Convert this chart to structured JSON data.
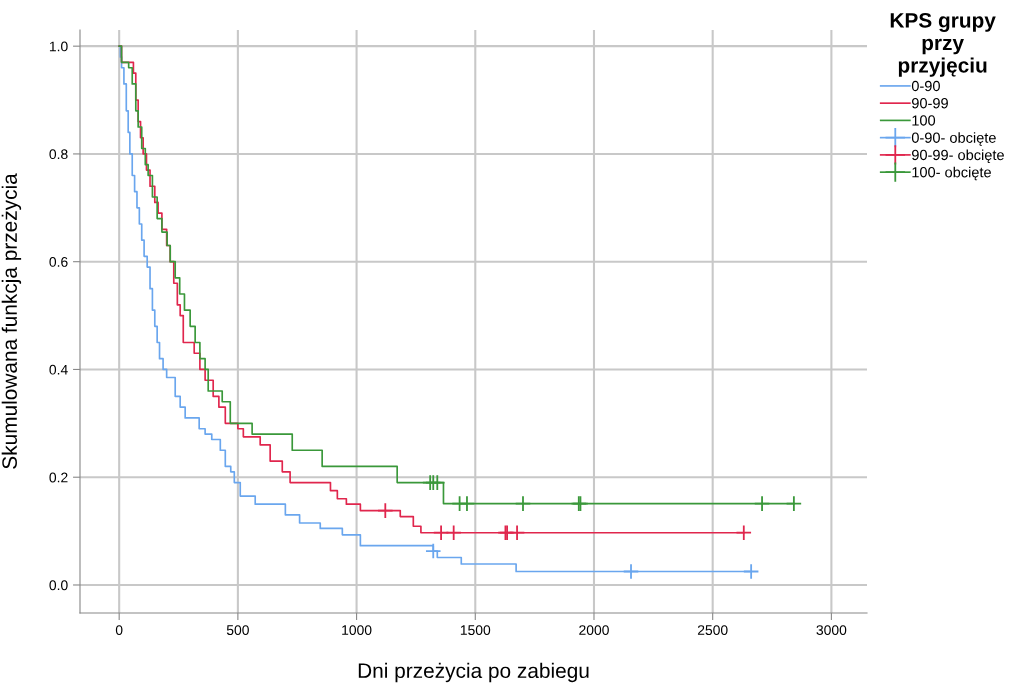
{
  "chart_data": {
    "type": "step",
    "xlabel": "Dni przeżycia po zabiegu",
    "ylabel": "Skumulowana funkcja przeżycia",
    "legend_title": "KPS grupy\nprzy\nprzyjęciu",
    "xlim": [
      -165,
      3150
    ],
    "ylim": [
      -0.052,
      1.03
    ],
    "xticks": [
      0,
      500,
      1000,
      1500,
      2000,
      2500,
      3000
    ],
    "yticks": [
      {
        "value": 0,
        "label": "0.0"
      },
      {
        "value": 0.2,
        "label": "0.2"
      },
      {
        "value": 0.4,
        "label": "0.4"
      },
      {
        "value": 0.6,
        "label": "0.6"
      },
      {
        "value": 0.8,
        "label": "0.8"
      },
      {
        "value": 1,
        "label": "1.0"
      }
    ],
    "grid": true,
    "legend": "right",
    "series": [
      {
        "name": "0-90",
        "color": "#6aa6ee",
        "x": [
          0,
          5,
          10,
          20,
          30,
          38,
          45,
          55,
          65,
          75,
          85,
          95,
          105,
          118,
          130,
          140,
          150,
          160,
          170,
          185,
          200,
          236,
          257,
          278,
          337,
          362,
          390,
          426,
          447,
          470,
          485,
          510,
          573,
          700,
          760,
          847,
          940,
          1016,
          1323,
          1340,
          1441,
          1672,
          2662
        ],
        "values": [
          1.0,
          0.98,
          0.96,
          0.93,
          0.88,
          0.84,
          0.8,
          0.76,
          0.73,
          0.7,
          0.67,
          0.64,
          0.61,
          0.59,
          0.55,
          0.51,
          0.48,
          0.45,
          0.42,
          0.4,
          0.385,
          0.35,
          0.33,
          0.31,
          0.29,
          0.28,
          0.27,
          0.25,
          0.22,
          0.21,
          0.19,
          0.165,
          0.15,
          0.13,
          0.115,
          0.105,
          0.093,
          0.073,
          0.063,
          0.051,
          0.039,
          0.025,
          0.025
        ]
      },
      {
        "name": "90-99",
        "color": "#e0264d",
        "x": [
          0,
          10,
          60,
          70,
          80,
          90,
          101,
          115,
          130,
          150,
          164,
          180,
          200,
          215,
          230,
          245,
          257,
          270,
          316,
          340,
          362,
          396,
          420,
          447,
          500,
          523,
          594,
          636,
          687,
          720,
          890,
          919,
          957,
          1016,
          1184,
          1239,
          1271,
          2631
        ],
        "values": [
          1.0,
          0.97,
          0.95,
          0.9,
          0.86,
          0.83,
          0.8,
          0.77,
          0.74,
          0.71,
          0.69,
          0.66,
          0.63,
          0.6,
          0.56,
          0.52,
          0.5,
          0.45,
          0.43,
          0.4,
          0.38,
          0.35,
          0.33,
          0.3,
          0.29,
          0.275,
          0.26,
          0.23,
          0.21,
          0.19,
          0.175,
          0.16,
          0.15,
          0.138,
          0.127,
          0.109,
          0.097,
          0.097
        ]
      },
      {
        "name": "100",
        "color": "#3a983a",
        "x": [
          0,
          10,
          40,
          55,
          70,
          80,
          95,
          110,
          122,
          140,
          160,
          180,
          202,
          215,
          236,
          255,
          275,
          299,
          320,
          340,
          362,
          375,
          434,
          468,
          560,
          729,
          855,
          1171,
          1366,
          2842
        ],
        "values": [
          1.0,
          0.97,
          0.96,
          0.93,
          0.88,
          0.85,
          0.81,
          0.78,
          0.76,
          0.72,
          0.68,
          0.655,
          0.63,
          0.6,
          0.57,
          0.54,
          0.51,
          0.48,
          0.45,
          0.42,
          0.4,
          0.36,
          0.34,
          0.3,
          0.28,
          0.25,
          0.22,
          0.19,
          0.151,
          0.151
        ]
      },
      {
        "name": "0-90- obcięte",
        "type": "scatter",
        "marker": "cross",
        "color": "#6aa6ee",
        "x": [
          1323,
          2156,
          2662
        ],
        "values": [
          0.063,
          0.025,
          0.025
        ]
      },
      {
        "name": "90-99- obcięte",
        "type": "scatter",
        "marker": "cross",
        "color": "#e0264d",
        "x": [
          1121,
          1356,
          1409,
          1627,
          1634,
          1676,
          2631
        ],
        "values": [
          0.138,
          0.097,
          0.097,
          0.097,
          0.097,
          0.097,
          0.097
        ]
      },
      {
        "name": "100- obcięte",
        "type": "scatter",
        "marker": "cross",
        "color": "#3a983a",
        "x": [
          1310,
          1323,
          1340,
          1434,
          1465,
          1701,
          1936,
          1943,
          2708,
          2842
        ],
        "values": [
          0.19,
          0.19,
          0.19,
          0.151,
          0.151,
          0.151,
          0.151,
          0.151,
          0.151,
          0.151
        ]
      }
    ]
  }
}
